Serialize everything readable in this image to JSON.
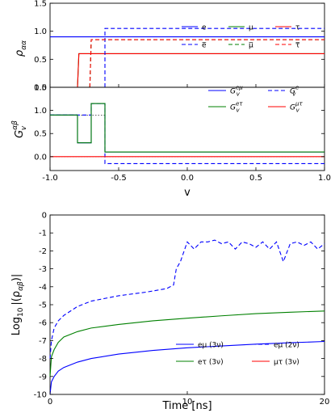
{
  "chart_data": [
    {
      "type": "line",
      "ylabel": "ρ",
      "ylabel_sub": "αα",
      "xlim": [
        -1.0,
        1.0
      ],
      "ylim": [
        0.0,
        1.5
      ],
      "yticks": [
        "0.0",
        "0.5",
        "1.0",
        "1.5"
      ],
      "legend": "lower-right",
      "series": [
        {
          "name": "e",
          "color": "#0000ff",
          "dash": false,
          "x": [
            -1.0,
            1.0
          ],
          "y": [
            0.9,
            0.9
          ]
        },
        {
          "name": "μ",
          "color": "#008000",
          "dash": false,
          "x": [
            -0.8,
            -0.79,
            1.0
          ],
          "y": [
            0.0,
            0.6,
            0.6
          ]
        },
        {
          "name": "τ",
          "color": "#ff0000",
          "dash": false,
          "x": [
            -0.8,
            -0.79,
            1.0
          ],
          "y": [
            0.0,
            0.6,
            0.6
          ]
        },
        {
          "name": "e̅",
          "color": "#0000ff",
          "dash": true,
          "x": [
            -0.6,
            -0.6,
            1.0
          ],
          "y": [
            0.0,
            1.05,
            1.05
          ]
        },
        {
          "name": "μ̅",
          "color": "#008000",
          "dash": true,
          "x": [
            -0.71,
            -0.7,
            1.0
          ],
          "y": [
            0.0,
            0.85,
            0.85
          ]
        },
        {
          "name": "τ̅",
          "color": "#ff0000",
          "dash": true,
          "x": [
            -0.71,
            -0.7,
            1.0
          ],
          "y": [
            0.0,
            0.85,
            0.85
          ]
        }
      ]
    },
    {
      "type": "line",
      "ylabel": "G",
      "ylabel_sub": "v",
      "ylabel_sup": "αβ",
      "xlabel": "v",
      "xlim": [
        -1.0,
        1.0
      ],
      "ylim": [
        -0.3,
        1.5
      ],
      "yticks": [
        "0.0",
        "0.5",
        "1.0",
        "1.5"
      ],
      "xticks": [
        "-1.0",
        "-0.5",
        "0.0",
        "0.5",
        "1.0"
      ],
      "legend": "upper-right",
      "series": [
        {
          "name": "eμ",
          "color": "#0000ff",
          "dash": false,
          "x": [
            -1.0,
            -0.8,
            -0.8,
            -0.7,
            -0.7,
            -0.6,
            -0.6,
            1.0
          ],
          "y": [
            0.9,
            0.9,
            0.3,
            0.3,
            1.15,
            1.15,
            0.1,
            0.1
          ]
        },
        {
          "name": "e",
          "color": "#0000ff",
          "dash": true,
          "x": [
            -1.0,
            -0.7,
            -0.7,
            -0.6,
            -0.6,
            1.0
          ],
          "y": [
            0.9,
            0.9,
            1.15,
            1.15,
            -0.15,
            -0.15
          ]
        },
        {
          "name": "eτ",
          "color": "#008000",
          "dash": false,
          "x": [
            -1.0,
            -0.8,
            -0.8,
            -0.7,
            -0.7,
            -0.6,
            -0.6,
            1.0
          ],
          "y": [
            0.9,
            0.9,
            0.3,
            0.3,
            1.15,
            1.15,
            0.1,
            0.1
          ]
        },
        {
          "name": "μτ",
          "color": "#ff0000",
          "dash": false,
          "x": [
            -1.0,
            1.0
          ],
          "y": [
            0.0,
            0.0
          ]
        }
      ]
    },
    {
      "type": "line",
      "ylabel": "Log",
      "ylabel_sub": "10",
      "ylabel_rest": "|(ρ",
      "ylabel_rest_sub": "αβ",
      "ylabel_end": ")|",
      "xlabel": "Time [ns]",
      "xlim": [
        0,
        20
      ],
      "ylim": [
        -10,
        0
      ],
      "yticks": [
        "-10",
        "-9",
        "-8",
        "-7",
        "-6",
        "-5",
        "-4",
        "-3",
        "-2",
        "-1",
        "0"
      ],
      "xticks": [
        "0",
        "10",
        "20"
      ],
      "legend": "lower-right",
      "series": [
        {
          "name": "eμ (3ν)",
          "color": "#0000ff",
          "dash": false,
          "x": [
            0.0,
            0.1,
            0.3,
            0.6,
            1,
            2,
            3,
            5,
            7.5,
            10,
            12.5,
            15,
            17.5,
            20
          ],
          "y": [
            -10,
            -9.3,
            -9.0,
            -8.7,
            -8.5,
            -8.2,
            -8.0,
            -7.75,
            -7.55,
            -7.4,
            -7.3,
            -7.2,
            -7.12,
            -7.05
          ]
        },
        {
          "name": "eμ (2ν)",
          "color": "#0000ff",
          "dash": true,
          "x": [
            0.0,
            0.1,
            0.3,
            0.6,
            1,
            2,
            3,
            5,
            7,
            8.5,
            9.0,
            9.2,
            9.5,
            10.0,
            10.5,
            11.0,
            11.5,
            12.0,
            12.5,
            13.0,
            13.5,
            14.0,
            14.5,
            15.0,
            15.5,
            16.0,
            16.5,
            17.0,
            17.5,
            18.0,
            18.5,
            19.0,
            19.5,
            20.0
          ],
          "y": [
            -8.0,
            -7.0,
            -6.3,
            -5.9,
            -5.6,
            -5.1,
            -4.8,
            -4.5,
            -4.3,
            -4.1,
            -3.9,
            -3.0,
            -2.6,
            -1.5,
            -1.9,
            -1.5,
            -1.5,
            -1.4,
            -1.6,
            -1.5,
            -1.9,
            -1.5,
            -1.6,
            -1.8,
            -1.5,
            -1.9,
            -1.5,
            -2.6,
            -1.6,
            -1.5,
            -1.7,
            -1.5,
            -1.9,
            -1.6
          ]
        },
        {
          "name": "eτ (3ν)",
          "color": "#008000",
          "dash": false,
          "x": [
            0.0,
            0.1,
            0.3,
            0.6,
            1,
            2,
            3,
            5,
            7.5,
            10,
            12.5,
            15,
            17.5,
            20
          ],
          "y": [
            -9.0,
            -7.9,
            -7.5,
            -7.1,
            -6.8,
            -6.5,
            -6.3,
            -6.1,
            -5.9,
            -5.75,
            -5.62,
            -5.5,
            -5.42,
            -5.35
          ]
        },
        {
          "name": "μτ (3ν)",
          "color": "#ff0000",
          "dash": false,
          "x": [],
          "y": []
        }
      ]
    }
  ]
}
